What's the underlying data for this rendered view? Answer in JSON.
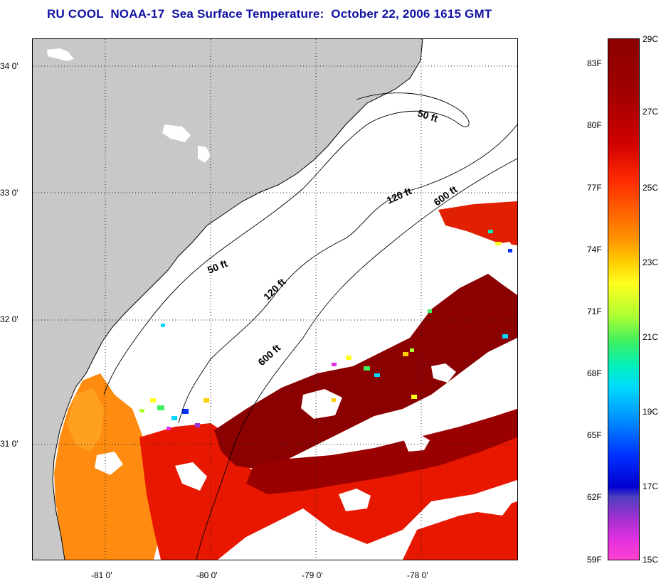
{
  "title": "RU COOL  NOAA-17  Sea Surface Temperature:  October 22, 2006 1615 GMT",
  "colors": {
    "land": "#c8c8c8",
    "no_data": "#ffffff",
    "title": "#1010a0",
    "sst_warmest": "#8b0000",
    "sst_warm": "#e81800",
    "sst_near_shore": "#ff8a00"
  },
  "map": {
    "longitude_labels": [
      "-81 0'",
      "-80 0'",
      "-79 0'",
      "-78 0'"
    ],
    "latitude_labels": [
      "34 0'",
      "33 0'",
      "32 0'",
      "31 0'"
    ],
    "grid": "dotted"
  },
  "contours": [
    {
      "label": "50 ft"
    },
    {
      "label": "120 ft"
    },
    {
      "label": "600 ft"
    },
    {
      "label": "50 ft"
    },
    {
      "label": "120 ft"
    },
    {
      "label": "600 ft"
    }
  ],
  "colorbar": {
    "fahrenheit": [
      "83F",
      "80F",
      "77F",
      "74F",
      "71F",
      "68F",
      "65F",
      "62F",
      "59F"
    ],
    "celsius": [
      "29C",
      "27C",
      "25C",
      "23C",
      "21C",
      "19C",
      "17C",
      "15C"
    ]
  }
}
